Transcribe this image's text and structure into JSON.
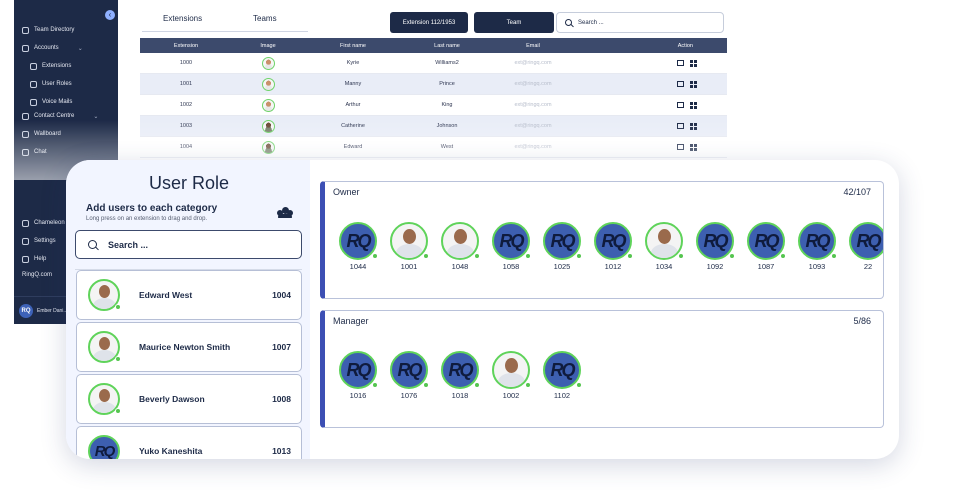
{
  "sidebar": {
    "items": [
      {
        "label": "Team Directory"
      },
      {
        "label": "Accounts"
      },
      {
        "label": "Extensions"
      },
      {
        "label": "User Roles"
      },
      {
        "label": "Voice Mails"
      },
      {
        "label": "Contact Centre"
      },
      {
        "label": "Wallboard"
      },
      {
        "label": "Chat"
      },
      {
        "label": "Chameleon"
      },
      {
        "label": "Settings"
      },
      {
        "label": "Help"
      },
      {
        "label": "RingQ.com"
      }
    ],
    "user": {
      "name": "Ember Dani..."
    }
  },
  "directory": {
    "tabs": [
      {
        "label": "Extensions"
      },
      {
        "label": "Teams"
      }
    ],
    "extension_button": "Extension 112/1953",
    "team_button": "Team",
    "search_placeholder": "Search ...",
    "columns": [
      "Extension",
      "Image",
      "First name",
      "Last name",
      "Email",
      "Action"
    ],
    "rows": [
      {
        "ext": "1000",
        "first": "Kyrie",
        "last": "Williams2",
        "email": "ext@ringq.com"
      },
      {
        "ext": "1001",
        "first": "Manny",
        "last": "Prince",
        "email": "ext@ringq.com"
      },
      {
        "ext": "1002",
        "first": "Arthur",
        "last": "King",
        "email": "ext@ringq.com"
      },
      {
        "ext": "1003",
        "first": "Catherine",
        "last": "Johnson",
        "email": "ext@ringq.com"
      },
      {
        "ext": "1004",
        "first": "Edward",
        "last": "West",
        "email": "ext@ringq.com"
      }
    ]
  },
  "role": {
    "title": "User Role",
    "subtitle": "Add users to each category",
    "hint": "Long press on an extension to drag and drop.",
    "search_placeholder": "Search ...",
    "extensions": [
      {
        "name": "Edward West",
        "ext": "1004",
        "avatar": "photo"
      },
      {
        "name": "Maurice Newton Smith",
        "ext": "1007",
        "avatar": "photo"
      },
      {
        "name": "Beverly Dawson",
        "ext": "1008",
        "avatar": "photo"
      },
      {
        "name": "Yuko Kaneshita",
        "ext": "1013",
        "avatar": "logo"
      }
    ],
    "categories": [
      {
        "name": "Owner",
        "count": "42/107",
        "members": [
          {
            "ext": "1044",
            "avatar": "logo"
          },
          {
            "ext": "1001",
            "avatar": "photo"
          },
          {
            "ext": "1048",
            "avatar": "photo"
          },
          {
            "ext": "1058",
            "avatar": "logo"
          },
          {
            "ext": "1025",
            "avatar": "logo"
          },
          {
            "ext": "1012",
            "avatar": "logo"
          },
          {
            "ext": "1034",
            "avatar": "photo"
          },
          {
            "ext": "1092",
            "avatar": "logo"
          },
          {
            "ext": "1087",
            "avatar": "logo"
          },
          {
            "ext": "1093",
            "avatar": "logo"
          },
          {
            "ext": "22",
            "avatar": "logo"
          }
        ]
      },
      {
        "name": "Manager",
        "count": "5/86",
        "members": [
          {
            "ext": "1016",
            "avatar": "logo"
          },
          {
            "ext": "1076",
            "avatar": "logo"
          },
          {
            "ext": "1018",
            "avatar": "logo"
          },
          {
            "ext": "1002",
            "avatar": "photo"
          },
          {
            "ext": "1102",
            "avatar": "logo"
          }
        ]
      }
    ]
  },
  "colors": {
    "navy": "#1d2a47",
    "online": "#55c54f",
    "accent": "#3c4fb4",
    "logo_bg": "#3d5fb0"
  }
}
